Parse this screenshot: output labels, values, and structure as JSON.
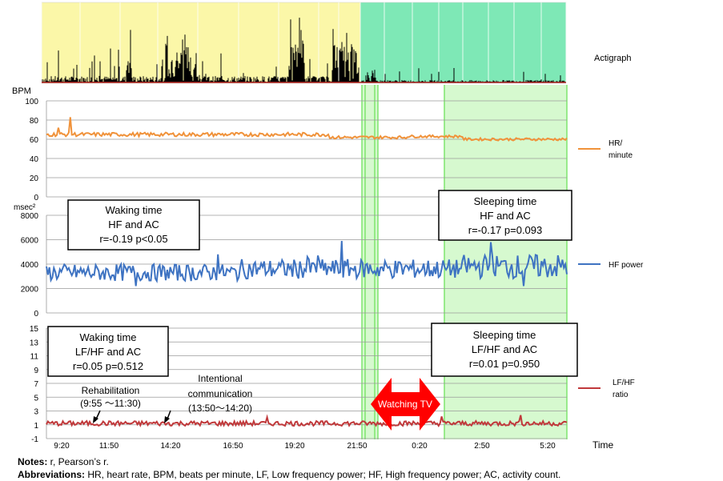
{
  "chart_data": {
    "type": "line",
    "x_ticks": [
      "9:20",
      "11:50",
      "14:20",
      "16:50",
      "19:20",
      "21:50",
      "0:20",
      "2:50",
      "5:20"
    ],
    "xlabel": "Time",
    "actigraph": {
      "label": "Actigraph",
      "waking_color": "#fbf7a8",
      "sleeping_color": "#7ee8b6",
      "bar_color": "#000000",
      "accent_color": "#b22222"
    },
    "panels": [
      {
        "id": "hr",
        "unit": "BPM",
        "ylim": [
          0,
          100
        ],
        "ticks": [
          "0",
          "20",
          "40",
          "60",
          "80",
          "100"
        ],
        "legend": [
          "HR/",
          "minute"
        ],
        "color": "#f0923a",
        "segments": [
          {
            "n": 190,
            "mean": 65,
            "amp": 2.0,
            "spikes": [
              [
                16,
                83
              ],
              [
                8,
                72
              ]
            ]
          },
          {
            "n": 52,
            "mean": 62,
            "amp": 1.5,
            "spikes": []
          },
          {
            "n": 38,
            "mean": 63,
            "amp": 1.3,
            "spikes": []
          },
          {
            "n": 70,
            "mean": 60,
            "amp": 1.3,
            "spikes": []
          }
        ]
      },
      {
        "id": "hf",
        "unit": "msec²",
        "ylim": [
          0,
          8000
        ],
        "ticks": [
          "0",
          "2000",
          "4000",
          "6000",
          "8000"
        ],
        "legend": [
          "HF power"
        ],
        "color": "#3e73c2",
        "segments": [
          {
            "n": 130,
            "mean": 3300,
            "amp": 700,
            "spikes": [
              [
                60,
                2200
              ],
              [
                115,
                4800
              ]
            ]
          },
          {
            "n": 150,
            "mean": 3600,
            "amp": 800,
            "spikes": [
              [
                68,
                5900
              ],
              [
                52,
                4700
              ],
              [
                45,
                4600
              ]
            ]
          },
          {
            "n": 70,
            "mean": 3800,
            "amp": 1000,
            "spikes": [
              [
                18,
                5800
              ],
              [
                40,
                2200
              ]
            ]
          }
        ]
      },
      {
        "id": "lfhf",
        "unit": "",
        "ylim": [
          -1,
          15
        ],
        "ticks": [
          "-1",
          "1",
          "3",
          "5",
          "7",
          "9",
          "11",
          "13",
          "15"
        ],
        "legend": [
          "LF/HF",
          "ratio"
        ],
        "color": "#c0393b",
        "segments": [
          {
            "n": 350,
            "mean": 1.2,
            "amp": 0.35,
            "spikes": [
              [
                148,
                2.1
              ],
              [
                230,
                1.9
              ],
              [
                265,
                2.2
              ],
              [
                318,
                2.4
              ]
            ]
          }
        ]
      }
    ],
    "shading": {
      "color": "#d6f9cf",
      "border": "#7ee66f"
    }
  },
  "annotations": {
    "waking_hf": {
      "line1": "Waking time",
      "line2": "HF and AC",
      "line3": "r=-0.19 p<0.05"
    },
    "sleeping_hf": {
      "line1": "Sleeping time",
      "line2": "HF  and AC",
      "line3": "r=-0.17 p=0.093"
    },
    "waking_lfhf": {
      "line1": "Waking time",
      "line2": "LF/HF and AC",
      "line3": "r=0.05 p=0.512"
    },
    "sleeping_lfhf": {
      "line1": "Sleeping time",
      "line2": "LF/HF and AC",
      "line3": "r=0.01 p=0.950"
    },
    "rehab": {
      "line1": "Rehabilitation",
      "line2": "(9:55 ～11:30)"
    },
    "intentional": {
      "line1": "Intentional",
      "line2": "communication",
      "line3": "(13:50～14:20)"
    },
    "watching_tv": "Watching TV",
    "watching_tv_color": "#ff0000"
  },
  "notes": {
    "notes_label": "Notes:",
    "notes_text": " r, Pearson’s r.",
    "abbr_label": "Abbreviations:",
    "abbr_text": " HR, heart rate, BPM, beats per minute, LF, Low frequency power; HF, High frequency power; AC, activity count."
  }
}
